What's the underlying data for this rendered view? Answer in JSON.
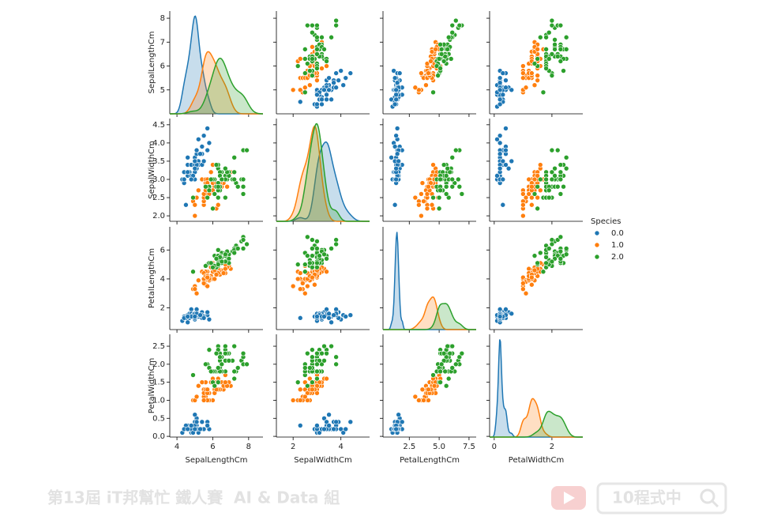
{
  "chart_data": {
    "type": "pairplot",
    "variables": [
      "SepalLengthCm",
      "SepalWidthCm",
      "PetalLengthCm",
      "PetalWidthCm"
    ],
    "axes": [
      {
        "xlim": [
          3.6,
          8.8
        ],
        "xticks": [
          4,
          6,
          8
        ],
        "ylim": [
          4.0,
          8.3
        ],
        "yticks": [
          5,
          6,
          7,
          8
        ]
      },
      {
        "xlim": [
          1.3,
          5.2
        ],
        "xticks": [
          2,
          4
        ],
        "ylim": [
          1.85,
          4.67
        ],
        "yticks": [
          {
            "value": 2,
            "label": "2.0"
          },
          2.5,
          {
            "value": 3,
            "label": "3.0"
          },
          3.5,
          {
            "value": 4,
            "label": "4.0"
          },
          4.5
        ]
      },
      {
        "xlim": [
          0.3,
          8.1
        ],
        "xticks": [
          2.5,
          {
            "value": 5,
            "label": "5.0"
          },
          7.5
        ],
        "ylim": [
          0.5,
          7.6
        ],
        "yticks": [
          2,
          4,
          6
        ]
      },
      {
        "xlim": [
          -0.16,
          3.07
        ],
        "xticks": [
          0,
          2
        ],
        "ylim": [
          -0.02,
          2.83
        ],
        "yticks": [
          {
            "value": 0,
            "label": "0.0"
          },
          0.5,
          {
            "value": 1,
            "label": "1.0"
          },
          1.5,
          {
            "value": 2,
            "label": "2.0"
          },
          2.5
        ]
      }
    ],
    "legend_title": "Species",
    "legend": "right",
    "series": [
      {
        "name": "0.0",
        "color": "#1f77b4",
        "values": [
          [
            5.1,
            4.9,
            4.7,
            4.6,
            5.0,
            5.4,
            4.6,
            5.0,
            4.4,
            4.9,
            5.4,
            4.8,
            4.8,
            4.3,
            5.8,
            5.7,
            5.4,
            5.1,
            5.7,
            5.1,
            5.4,
            5.1,
            4.6,
            5.1,
            4.8,
            5.0,
            5.0,
            5.2,
            5.2,
            4.7,
            4.8,
            5.4,
            5.2,
            5.5,
            4.9,
            5.0,
            5.5,
            4.9,
            4.4,
            5.1,
            5.0,
            4.5,
            4.4,
            5.0,
            5.1,
            4.8,
            5.1,
            4.6,
            5.3,
            5.0
          ],
          [
            3.5,
            3.0,
            3.2,
            3.1,
            3.6,
            3.9,
            3.4,
            3.4,
            2.9,
            3.1,
            3.7,
            3.4,
            3.0,
            3.0,
            4.0,
            4.4,
            3.9,
            3.5,
            3.8,
            3.8,
            3.4,
            3.7,
            3.6,
            3.3,
            3.4,
            3.0,
            3.4,
            3.5,
            3.4,
            3.2,
            3.1,
            3.4,
            4.1,
            4.2,
            3.1,
            3.2,
            3.5,
            3.1,
            3.0,
            3.4,
            3.5,
            2.3,
            3.2,
            3.5,
            3.8,
            3.0,
            3.8,
            3.2,
            3.7,
            3.3
          ],
          [
            1.4,
            1.4,
            1.3,
            1.5,
            1.4,
            1.7,
            1.4,
            1.5,
            1.4,
            1.5,
            1.5,
            1.6,
            1.4,
            1.1,
            1.2,
            1.5,
            1.3,
            1.4,
            1.7,
            1.5,
            1.7,
            1.5,
            1.0,
            1.7,
            1.9,
            1.6,
            1.6,
            1.5,
            1.4,
            1.6,
            1.6,
            1.5,
            1.5,
            1.4,
            1.5,
            1.2,
            1.3,
            1.5,
            1.3,
            1.5,
            1.3,
            1.3,
            1.3,
            1.6,
            1.9,
            1.4,
            1.6,
            1.4,
            1.5,
            1.4
          ],
          [
            0.2,
            0.2,
            0.2,
            0.2,
            0.2,
            0.4,
            0.3,
            0.2,
            0.2,
            0.1,
            0.2,
            0.2,
            0.1,
            0.1,
            0.2,
            0.4,
            0.4,
            0.3,
            0.3,
            0.3,
            0.2,
            0.4,
            0.2,
            0.5,
            0.2,
            0.2,
            0.4,
            0.2,
            0.2,
            0.2,
            0.2,
            0.4,
            0.1,
            0.2,
            0.1,
            0.2,
            0.2,
            0.1,
            0.2,
            0.2,
            0.3,
            0.3,
            0.2,
            0.6,
            0.4,
            0.3,
            0.2,
            0.2,
            0.2,
            0.2
          ]
        ]
      },
      {
        "name": "1.0",
        "color": "#ff7f0e",
        "values": [
          [
            7.0,
            6.4,
            6.9,
            5.5,
            6.5,
            5.7,
            6.3,
            4.9,
            6.6,
            5.2,
            5.0,
            5.9,
            6.0,
            6.1,
            5.6,
            6.7,
            5.6,
            5.8,
            6.2,
            5.6,
            5.9,
            6.1,
            6.3,
            6.1,
            6.4,
            6.6,
            6.8,
            6.7,
            6.0,
            5.7,
            5.5,
            5.5,
            5.8,
            6.0,
            5.4,
            6.0,
            6.7,
            6.3,
            5.6,
            5.5,
            5.5,
            6.1,
            5.8,
            5.0,
            5.6,
            5.7,
            5.7,
            6.2,
            5.1,
            5.7
          ],
          [
            3.2,
            3.2,
            3.1,
            2.3,
            2.8,
            2.8,
            3.3,
            2.4,
            2.9,
            2.7,
            2.0,
            3.0,
            2.2,
            2.9,
            2.9,
            3.1,
            3.0,
            2.7,
            2.2,
            2.5,
            3.2,
            2.8,
            2.5,
            2.8,
            2.9,
            3.0,
            2.8,
            3.0,
            2.9,
            2.6,
            2.4,
            2.4,
            2.7,
            2.7,
            3.0,
            3.4,
            3.1,
            2.3,
            3.0,
            2.5,
            2.6,
            3.0,
            2.6,
            2.3,
            2.7,
            3.0,
            2.9,
            2.9,
            2.5,
            2.8
          ],
          [
            4.7,
            4.5,
            4.9,
            4.0,
            4.6,
            4.5,
            4.7,
            3.3,
            4.6,
            3.9,
            3.5,
            4.2,
            4.0,
            4.7,
            3.6,
            4.4,
            4.5,
            4.1,
            4.5,
            3.9,
            4.8,
            4.0,
            4.9,
            4.7,
            4.3,
            4.4,
            4.8,
            5.0,
            4.5,
            3.5,
            3.8,
            3.7,
            3.9,
            5.1,
            4.5,
            4.5,
            4.7,
            4.4,
            4.1,
            4.0,
            4.4,
            4.6,
            4.0,
            3.3,
            4.2,
            4.2,
            4.2,
            4.3,
            3.0,
            4.1
          ],
          [
            1.4,
            1.5,
            1.5,
            1.3,
            1.5,
            1.3,
            1.6,
            1.0,
            1.3,
            1.4,
            1.0,
            1.5,
            1.0,
            1.4,
            1.3,
            1.4,
            1.5,
            1.0,
            1.5,
            1.1,
            1.8,
            1.3,
            1.5,
            1.2,
            1.3,
            1.4,
            1.4,
            1.7,
            1.5,
            1.0,
            1.1,
            1.0,
            1.2,
            1.6,
            1.5,
            1.6,
            1.5,
            1.3,
            1.3,
            1.3,
            1.2,
            1.4,
            1.2,
            1.0,
            1.3,
            1.2,
            1.3,
            1.3,
            1.1,
            1.3
          ]
        ]
      },
      {
        "name": "2.0",
        "color": "#2ca02c",
        "values": [
          [
            6.3,
            5.8,
            7.1,
            6.3,
            6.5,
            7.6,
            4.9,
            7.3,
            6.7,
            7.2,
            6.5,
            6.4,
            6.8,
            5.7,
            5.8,
            6.4,
            6.5,
            7.7,
            7.7,
            6.0,
            6.9,
            5.6,
            7.7,
            6.3,
            6.7,
            7.2,
            6.2,
            6.1,
            6.4,
            7.2,
            7.4,
            7.9,
            6.4,
            6.3,
            6.1,
            7.7,
            6.3,
            6.4,
            6.0,
            6.9,
            6.7,
            6.9,
            5.8,
            6.8,
            6.7,
            6.7,
            6.3,
            6.5,
            6.2,
            5.9
          ],
          [
            3.3,
            2.7,
            3.0,
            2.9,
            3.0,
            3.0,
            2.5,
            2.9,
            2.5,
            3.6,
            3.2,
            2.7,
            3.0,
            2.5,
            2.8,
            3.2,
            3.0,
            3.8,
            2.6,
            2.2,
            3.2,
            2.8,
            2.8,
            2.7,
            3.3,
            3.2,
            2.8,
            3.0,
            2.8,
            3.0,
            2.8,
            3.8,
            2.8,
            2.8,
            2.6,
            3.0,
            3.4,
            3.1,
            3.0,
            3.1,
            3.1,
            3.1,
            2.7,
            3.2,
            3.3,
            3.0,
            2.5,
            3.0,
            3.4,
            3.0
          ],
          [
            6.0,
            5.1,
            5.9,
            5.6,
            5.8,
            6.6,
            4.5,
            6.3,
            5.8,
            6.1,
            5.1,
            5.3,
            5.5,
            5.0,
            5.1,
            5.3,
            5.5,
            6.7,
            6.9,
            5.0,
            5.7,
            4.9,
            6.7,
            4.9,
            5.7,
            6.0,
            4.8,
            4.9,
            5.6,
            5.8,
            6.1,
            6.4,
            5.6,
            5.1,
            5.6,
            6.1,
            5.6,
            5.5,
            4.8,
            5.4,
            5.6,
            5.1,
            5.1,
            5.9,
            5.7,
            5.2,
            5.0,
            5.2,
            5.4,
            5.1
          ],
          [
            2.5,
            1.9,
            2.1,
            1.8,
            2.2,
            2.1,
            1.7,
            1.8,
            1.8,
            2.5,
            2.0,
            1.9,
            2.1,
            2.0,
            2.4,
            2.3,
            1.8,
            2.2,
            2.3,
            1.5,
            2.3,
            2.0,
            2.0,
            1.8,
            2.1,
            1.8,
            1.8,
            1.8,
            2.1,
            1.6,
            1.9,
            2.0,
            2.2,
            1.5,
            1.4,
            2.3,
            2.4,
            1.8,
            1.8,
            2.1,
            2.4,
            2.3,
            1.9,
            2.3,
            2.5,
            2.3,
            1.9,
            2.0,
            2.3,
            1.8
          ]
        ]
      }
    ]
  },
  "watermark": {
    "event": "第13屆 iT邦幫忙 鐵人賽",
    "group": "AI & Data 組",
    "search": "10程式中"
  }
}
